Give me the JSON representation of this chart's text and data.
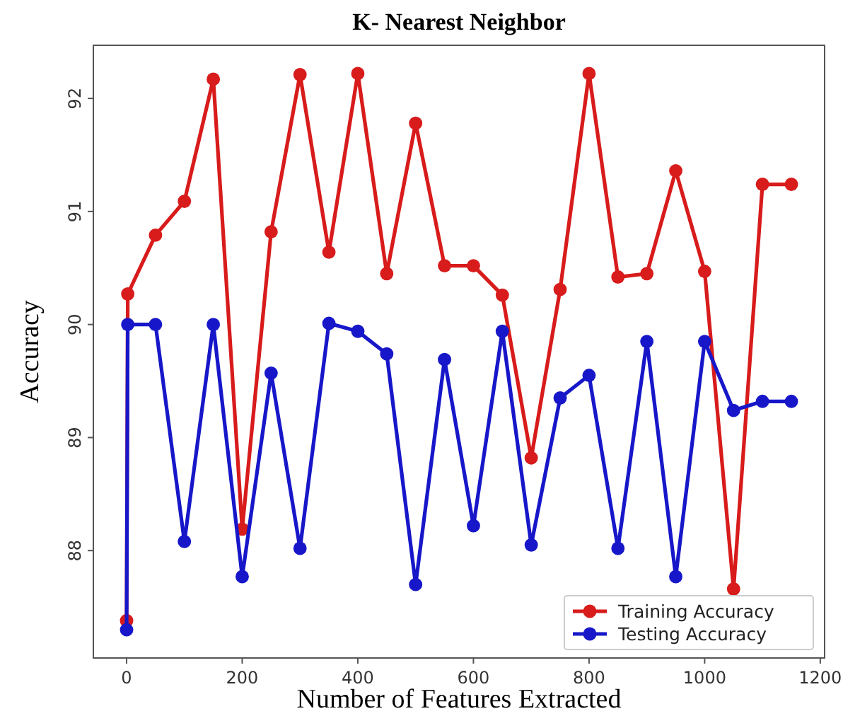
{
  "chart_data": {
    "type": "line",
    "title": "K- Nearest Neighbor",
    "xlabel": "Number of Features Extracted",
    "ylabel": "Accuracy",
    "x": [
      0,
      2,
      50,
      100,
      150,
      200,
      250,
      300,
      350,
      400,
      450,
      500,
      550,
      600,
      650,
      700,
      750,
      800,
      850,
      900,
      950,
      1000,
      1050,
      1100,
      1150
    ],
    "series": [
      {
        "name": "Training Accuracy",
        "color": "#d81b1b",
        "values": [
          87.38,
          90.27,
          90.79,
          91.09,
          92.17,
          88.19,
          90.82,
          92.21,
          90.64,
          92.22,
          90.45,
          91.78,
          90.52,
          90.52,
          90.26,
          88.82,
          90.31,
          92.22,
          90.42,
          90.45,
          91.36,
          90.47,
          87.66,
          91.24,
          91.24
        ]
      },
      {
        "name": "Testing Accuracy",
        "color": "#1717c9",
        "values": [
          87.3,
          90.0,
          90.0,
          88.08,
          90.0,
          87.77,
          89.57,
          88.02,
          90.01,
          89.94,
          89.74,
          87.7,
          89.69,
          88.22,
          89.94,
          88.05,
          89.35,
          89.55,
          88.02,
          89.85,
          87.77,
          89.85,
          89.24,
          89.32,
          89.32
        ]
      }
    ],
    "xlim": [
      -57.5,
      1207.5
    ],
    "ylim": [
      87.05,
      92.47
    ],
    "xticks": [
      0,
      200,
      400,
      600,
      800,
      1000,
      1200
    ],
    "yticks": [
      88,
      89,
      90,
      91,
      92
    ],
    "legend": "bottom right",
    "marker": "circle",
    "line_style": "solid",
    "grid": false
  }
}
